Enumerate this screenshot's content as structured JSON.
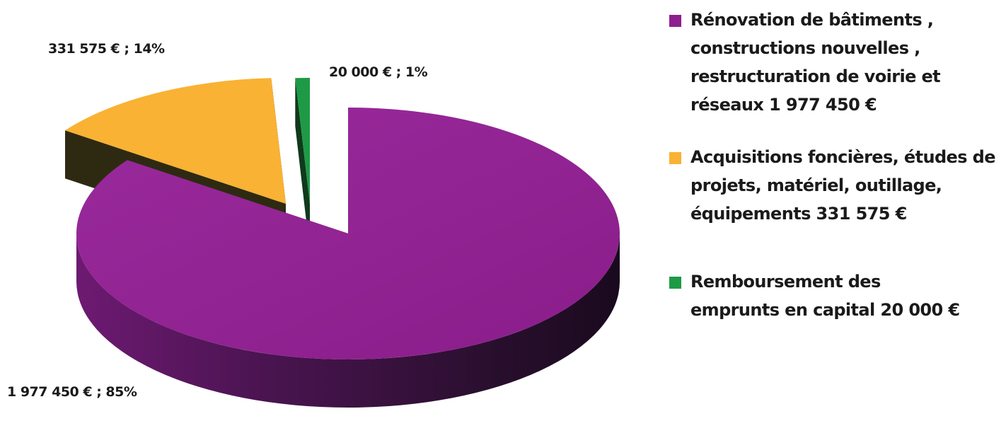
{
  "chart_data": {
    "type": "pie",
    "style": "3d-exploded",
    "slices": [
      {
        "name": "Rénovation de bâtiments , constructions nouvelles , restructuration de voirie et réseaux   1 977 450 €",
        "value": 1977450,
        "percent": 85,
        "data_label": "1 977 450 € ; 85%",
        "color": "#8E1F8E"
      },
      {
        "name": "Acquisitions foncières, études de projets, matériel, outillage, équipements  331 575 €",
        "value": 331575,
        "percent": 14,
        "data_label": "331 575 € ; 14%",
        "color": "#F9B233"
      },
      {
        "name": "Remboursement des emprunts  en capital   20 000 €",
        "value": 20000,
        "percent": 1,
        "data_label": "20 000 € ; 1%",
        "color": "#1E9A46"
      }
    ],
    "legend_position": "right"
  },
  "legend": {
    "items": [
      {
        "lines": [
          "Rénovation de bâtiments ,",
          "constructions nouvelles ,",
          "restructuration de voirie et",
          "réseaux   1 977 450 €"
        ],
        "color": "#8E1F8E"
      },
      {
        "lines": [
          "Acquisitions foncières, études de",
          "projets, matériel, outillage,",
          "équipements  331 575 €"
        ],
        "color": "#F9B233"
      },
      {
        "lines": [
          "Remboursement des",
          "emprunts  en capital   20 000 €"
        ],
        "color": "#1E9A46"
      }
    ]
  }
}
